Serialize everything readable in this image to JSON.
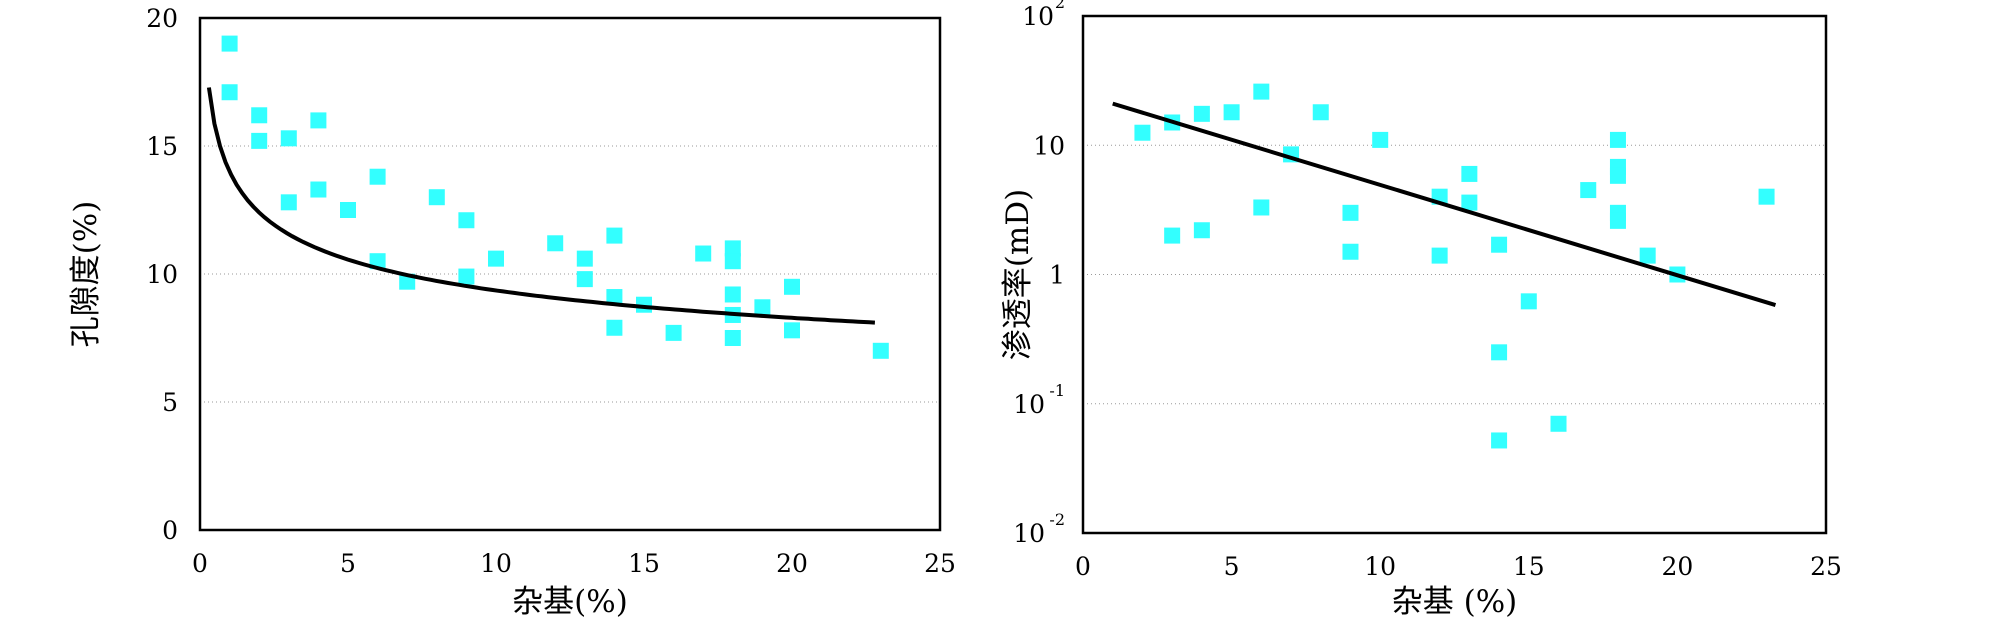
{
  "chart_data": [
    {
      "type": "scatter",
      "title": "",
      "xlabel": "杂基(%)",
      "ylabel": "孔隙度(%)",
      "xlim": [
        0,
        25
      ],
      "ylim": [
        0,
        20
      ],
      "xticks": [
        "0",
        "5",
        "10",
        "15",
        "20",
        "25"
      ],
      "yticks": [
        "0",
        "5",
        "10",
        "15",
        "20"
      ],
      "grid": "horizontal dotted",
      "marker_color": "#33FFFF",
      "trend_color": "#000000",
      "points": [
        [
          1,
          19
        ],
        [
          1,
          17.1
        ],
        [
          2,
          16.2
        ],
        [
          2,
          15.2
        ],
        [
          3,
          15.3
        ],
        [
          3,
          12.8
        ],
        [
          4,
          16
        ],
        [
          4,
          13.3
        ],
        [
          5,
          12.5
        ],
        [
          6,
          13.8
        ],
        [
          6,
          10.5
        ],
        [
          7,
          9.7
        ],
        [
          8,
          13
        ],
        [
          9,
          12.1
        ],
        [
          9,
          9.9
        ],
        [
          10,
          10.6
        ],
        [
          12,
          11.2
        ],
        [
          13,
          10.6
        ],
        [
          13,
          9.8
        ],
        [
          14,
          11.5
        ],
        [
          14,
          9.1
        ],
        [
          14,
          7.9
        ],
        [
          15,
          8.8
        ],
        [
          16,
          7.7
        ],
        [
          17,
          10.8
        ],
        [
          18,
          11
        ],
        [
          18,
          10.5
        ],
        [
          18,
          9.2
        ],
        [
          18,
          8.4
        ],
        [
          18,
          7.5
        ],
        [
          19,
          8.7
        ],
        [
          20,
          9.5
        ],
        [
          20,
          7.8
        ],
        [
          23,
          7
        ]
      ],
      "trend": {
        "type": "power",
        "a": 14.0,
        "b": -0.175,
        "x_range": [
          0.3,
          22.8
        ]
      }
    },
    {
      "type": "scatter",
      "title": "",
      "xlabel": "杂基 (%)",
      "ylabel": "渗透率(mD)",
      "xlim": [
        0,
        25
      ],
      "ylim": [
        0.01,
        100
      ],
      "yscale": "log",
      "xticks": [
        "0",
        "5",
        "10",
        "15",
        "20",
        "25"
      ],
      "yticks": [
        {
          "base": "10",
          "exp": "2",
          "value": 100
        },
        {
          "base": "10",
          "exp": "",
          "value": 10
        },
        {
          "base": "1",
          "exp": "",
          "value": 1
        },
        {
          "base": "10",
          "exp": "-1",
          "value": 0.1
        },
        {
          "base": "10",
          "exp": "-2",
          "value": 0.01
        }
      ],
      "grid": "horizontal dotted",
      "marker_color": "#33FFFF",
      "trend_color": "#000000",
      "points": [
        [
          2,
          12.5
        ],
        [
          3,
          15
        ],
        [
          3,
          2
        ],
        [
          4,
          17.5
        ],
        [
          4,
          2.2
        ],
        [
          5,
          18
        ],
        [
          6,
          26
        ],
        [
          6,
          3.3
        ],
        [
          7,
          8.5
        ],
        [
          8,
          18
        ],
        [
          9,
          3
        ],
        [
          9,
          1.5
        ],
        [
          10,
          11
        ],
        [
          12,
          4
        ],
        [
          12,
          1.4
        ],
        [
          13,
          6
        ],
        [
          13,
          3.6
        ],
        [
          14,
          1.7
        ],
        [
          14,
          0.25
        ],
        [
          14,
          0.052
        ],
        [
          15,
          0.62
        ],
        [
          16,
          0.07
        ],
        [
          17,
          4.5
        ],
        [
          18,
          11
        ],
        [
          18,
          6.8
        ],
        [
          18,
          5.8
        ],
        [
          18,
          3
        ],
        [
          18,
          2.6
        ],
        [
          19,
          1.4
        ],
        [
          20,
          1
        ],
        [
          23,
          4
        ]
      ],
      "trend": {
        "type": "exponential",
        "x_range": [
          1,
          23.3
        ],
        "y_at_start": 21,
        "y_at_end": 0.58
      }
    }
  ]
}
